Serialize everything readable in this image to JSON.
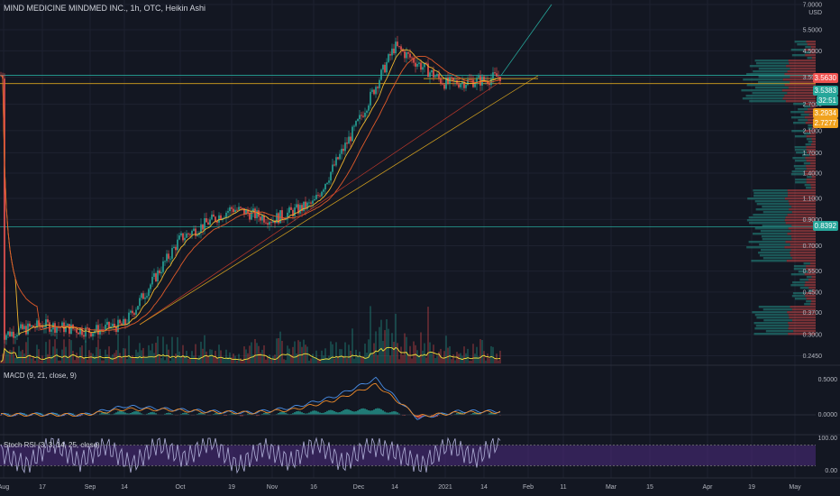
{
  "header": {
    "title": "MIND MEDICINE MINDMED INC., 1h, OTC, Heikin Ashi"
  },
  "panels": {
    "macd_label": "MACD (9, 21, close, 9)",
    "stoch_label": "Stoch RSI (3, 3, 14, 25, close)"
  },
  "colors": {
    "background": "#131722",
    "grid": "#1e2230",
    "up": "#26a69a",
    "down": "#ef5350",
    "ema_fast": "#f0b52e",
    "ema_slow": "#e05a2a",
    "trend": "#d7a41e",
    "volume_ma": "#f5e23a",
    "macd": "#4a8fe8",
    "signal": "#f08c2a",
    "stoch_k": "#b0b0d8",
    "stoch_band": "#4a2a7a"
  },
  "price_tags": [
    {
      "label": "3.5630",
      "bg": "#ef5350"
    },
    {
      "label": "3.5383",
      "bg": "#26a69a"
    },
    {
      "label": "32:51",
      "bg": "#26a69a"
    },
    {
      "label": "3.2934",
      "bg": "#f0a21e"
    },
    {
      "label": "2.7277",
      "bg": "#f0a21e"
    },
    {
      "label": "0.8392",
      "bg": "#26a69a"
    }
  ],
  "chart_data": [
    {
      "type": "candlestick",
      "title": "MIND MEDICINE MINDMED INC., 1h, OTC, Heikin Ashi",
      "y_scale": "log",
      "y_ticks": [
        "7.0000",
        "USD",
        "5.5000",
        "4.5000",
        "3.5000",
        "2.7000",
        "2.1000",
        "1.7000",
        "1.4000",
        "1.1000",
        "0.9000",
        "0.7000",
        "0.5500",
        "0.4500",
        "0.3700",
        "0.3000",
        "0.2450"
      ],
      "x_ticks": [
        "Aug",
        "17",
        "Sep",
        "14",
        "Oct",
        "19",
        "Nov",
        "16",
        "Dec",
        "14",
        "2021",
        "14",
        "Feb",
        "11",
        "Mar",
        "15",
        "Apr",
        "19",
        "May"
      ],
      "price_path": [
        {
          "x": "Aug",
          "close": 0.3
        },
        {
          "x": "17",
          "close": 0.33
        },
        {
          "x": "Sep",
          "close": 0.31
        },
        {
          "x": "14",
          "close": 0.33
        },
        {
          "x": "Oct",
          "close": 0.75
        },
        {
          "x": "19",
          "close": 1.0
        },
        {
          "x": "Nov",
          "close": 0.9
        },
        {
          "x": "16",
          "close": 1.05
        },
        {
          "x": "Dec",
          "close": 2.3
        },
        {
          "x": "14",
          "close": 4.7
        },
        {
          "x": "2021",
          "close": 3.3
        },
        {
          "x": "14",
          "close": 3.4
        },
        {
          "x": "end",
          "close": 3.56
        }
      ],
      "horizontal_levels": [
        3.56,
        3.29,
        0.84
      ],
      "last_price": 3.563
    },
    {
      "type": "line",
      "title": "MACD (9, 21, close, 9)",
      "y_ticks": [
        "0.5000",
        "0.0000"
      ],
      "series": [
        {
          "values": [
            0.0,
            0.01,
            0.0,
            0.12,
            0.08,
            0.05,
            0.03,
            0.1,
            0.25,
            0.5,
            -0.05,
            0.05,
            0.05
          ]
        },
        {
          "values": [
            0.0,
            0.0,
            0.0,
            0.08,
            0.07,
            0.04,
            0.03,
            0.07,
            0.2,
            0.42,
            -0.02,
            0.03,
            0.04
          ]
        }
      ]
    },
    {
      "type": "line",
      "title": "Stoch RSI (3, 3, 14, 25, close)",
      "y_ticks": [
        "100.00",
        "0.00"
      ],
      "y_range": [
        0,
        100
      ],
      "bands": [
        20,
        80
      ],
      "series": [
        {
          "values": [
            60,
            20,
            90,
            30,
            80,
            20,
            85,
            40,
            95,
            15,
            75,
            30,
            90,
            25,
            80,
            60,
            20,
            85,
            40,
            95
          ]
        }
      ]
    }
  ]
}
